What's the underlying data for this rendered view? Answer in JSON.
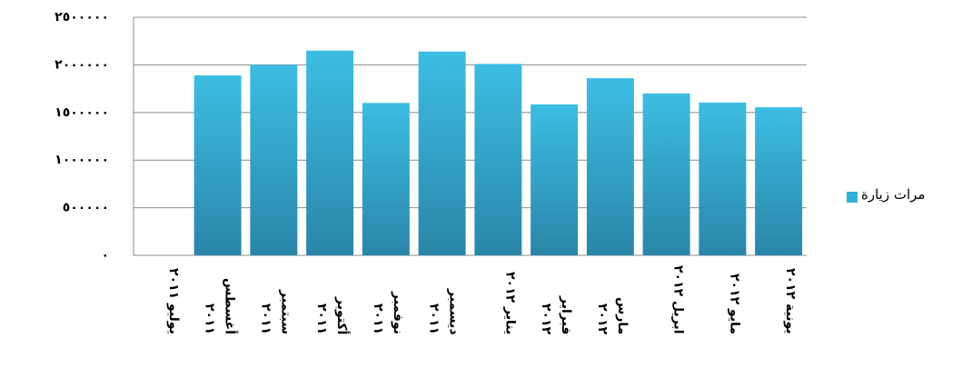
{
  "chart_data": {
    "type": "bar",
    "categories": [
      "يوليو ٢٠١١",
      "أغسطس ٢٠١١",
      "سبتمبر ٢٠١١",
      "أكتوبر ٢٠١١",
      "نوفمبر ٢٠١١",
      "ديسمبر ٢٠١١",
      "يناير ٢٠١٢",
      "فبراير ٢٠١٢",
      "مارس ٢٠١٢",
      "ابريل ٢٠١٢",
      "مايو ٢٠١٢",
      "يونية ٢٠١٢"
    ],
    "series": [
      {
        "name": "مرات زيارة",
        "color": "#33b0d6",
        "values": [
          0,
          1890000,
          2000000,
          2150000,
          1600000,
          2140000,
          2010000,
          1585000,
          1860000,
          1700000,
          1605000,
          1555000
        ]
      }
    ],
    "ylim": [
      0,
      2500000
    ],
    "yticks": [
      {
        "value": 0,
        "label": "٠"
      },
      {
        "value": 500000,
        "label": "٥٠٠٠٠٠"
      },
      {
        "value": 1000000,
        "label": "١٠٠٠٠٠٠"
      },
      {
        "value": 1500000,
        "label": "١٥٠٠٠٠٠"
      },
      {
        "value": 2000000,
        "label": "٢٠٠٠٠٠٠"
      },
      {
        "value": 2500000,
        "label": "٢٥٠٠٠٠٠"
      }
    ],
    "grid": true,
    "legend": "right"
  }
}
